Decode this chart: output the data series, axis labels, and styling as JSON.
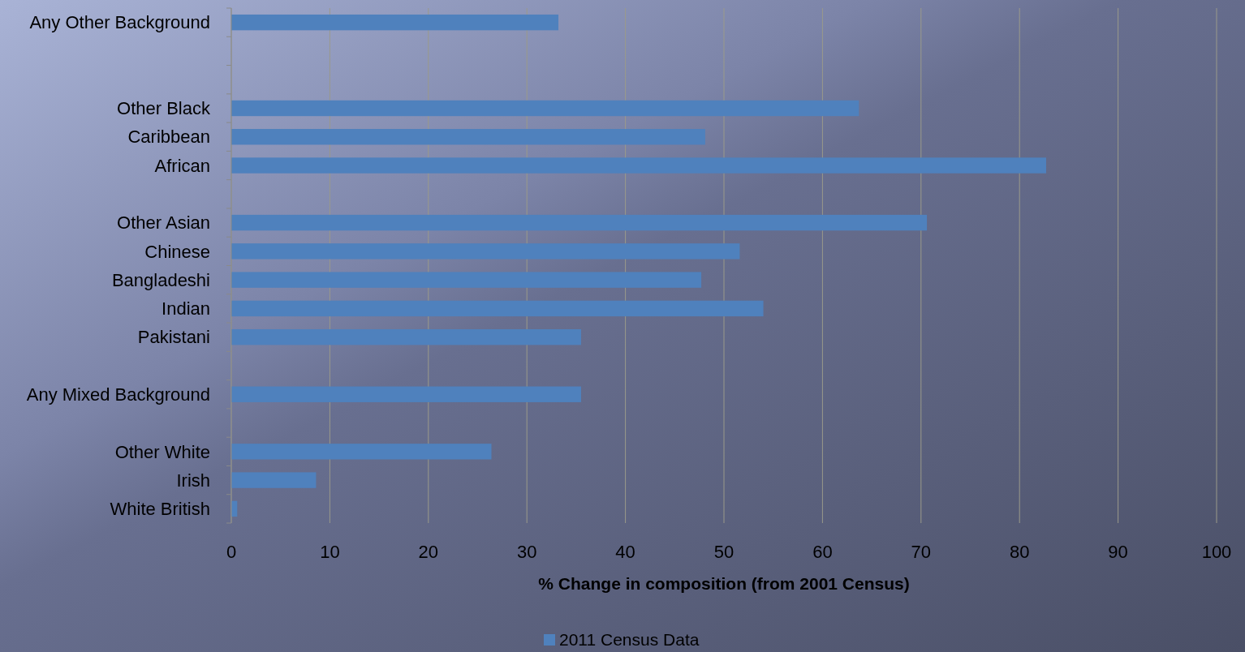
{
  "chart_data": {
    "type": "bar",
    "orientation": "horizontal",
    "xlabel": "% Change in composition (from 2001 Census)",
    "categories": [
      "Any Other Background",
      null,
      null,
      "Other Black",
      "Caribbean",
      "African",
      null,
      "Other Asian",
      "Chinese",
      "Bangladeshi",
      "Indian",
      "Pakistani",
      null,
      "Any Mixed Background",
      null,
      "Other White",
      "Irish",
      "White British"
    ],
    "series": [
      {
        "name": "2011 Census Data",
        "color": "#4f81bd",
        "values": [
          33.2,
          null,
          null,
          63.7,
          48.1,
          82.7,
          null,
          70.6,
          51.6,
          47.7,
          54.0,
          35.5,
          null,
          35.5,
          null,
          26.4,
          8.6,
          0.6
        ]
      }
    ],
    "xlim": [
      0,
      100
    ],
    "xticks": [
      0,
      10,
      20,
      30,
      40,
      50,
      60,
      70,
      80,
      90,
      100
    ],
    "grid": "x",
    "legend": "bottom"
  }
}
